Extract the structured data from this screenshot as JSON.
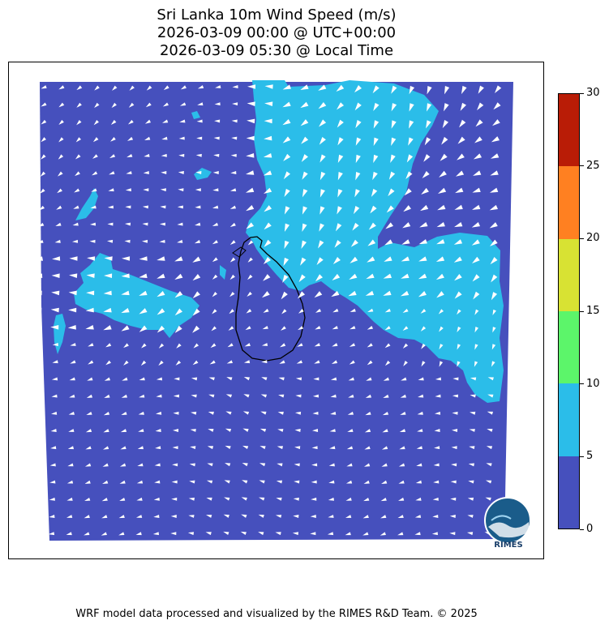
{
  "title": {
    "line1": "Sri Lanka 10m Wind Speed (m/s)",
    "line2": "2026-03-09 00:00 @ UTC+00:00",
    "line3": "2026-03-09 05:30 @ Local Time"
  },
  "colorbar": {
    "levels": [
      0,
      5,
      10,
      15,
      20,
      25,
      30
    ],
    "labels": [
      "0",
      "5",
      "10",
      "15",
      "20",
      "25",
      "30"
    ],
    "colors": [
      "#4650bd",
      "#2bbde9",
      "#5cf56a",
      "#d8e233",
      "#ff8021",
      "#b91c06"
    ]
  },
  "map": {
    "background_color": "#4650bd",
    "high_wind_color": "#2bbde9",
    "coastline_color": "#000000",
    "arrow_color": "#ffffff",
    "region": "Sri Lanka"
  },
  "logo": {
    "text": "RIMES"
  },
  "footer": {
    "text": "WRF model data processed and visualized by the RIMES R&D Team. © 2025"
  }
}
